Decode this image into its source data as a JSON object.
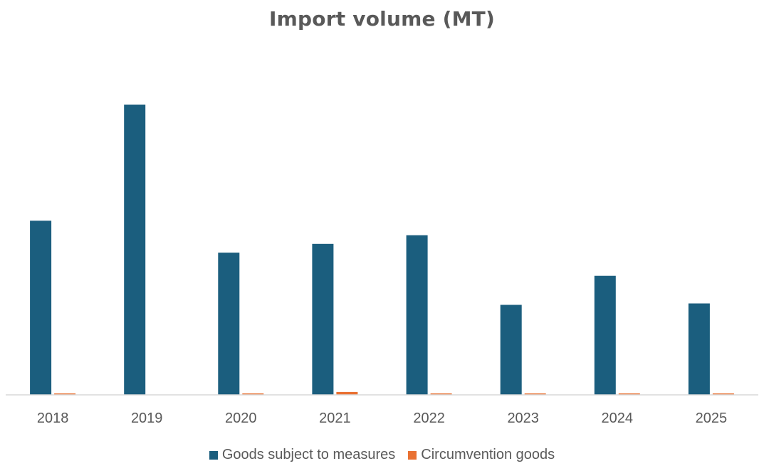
{
  "chart_data": {
    "type": "bar",
    "title": "Import volume (MT)",
    "xlabel": "",
    "ylabel": "",
    "categories": [
      "2018",
      "2019",
      "2020",
      "2021",
      "2022",
      "2023",
      "2024",
      "2025"
    ],
    "series": [
      {
        "name": "Goods subject to measures",
        "color": "#1B5E7E",
        "values": [
          60,
          100,
          49,
          52,
          55,
          31,
          41,
          31.5
        ]
      },
      {
        "name": "Circumvention goods",
        "color": "#E97132",
        "values": [
          0.5,
          0,
          0.5,
          1,
          0.5,
          0.5,
          0.5,
          0.5
        ]
      }
    ],
    "ylim": [
      0,
      100
    ],
    "grid": false,
    "legend_position": "bottom"
  }
}
